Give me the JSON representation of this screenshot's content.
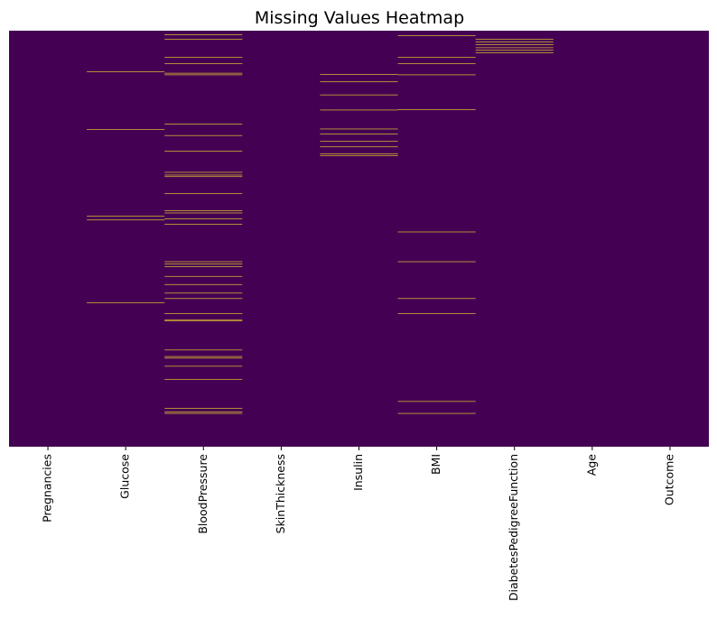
{
  "chart_data": {
    "type": "heatmap",
    "title": "Missing Values Heatmap",
    "xlabel": "",
    "ylabel": "",
    "columns": [
      "Pregnancies",
      "Glucose",
      "BloodPressure",
      "SkinThickness",
      "Insulin",
      "BMI",
      "DiabetesPedigreeFunction",
      "Age",
      "Outcome"
    ],
    "colors": {
      "present": "#440154",
      "missing": "#fde725"
    },
    "colorbar": false,
    "y_tick_labels": false,
    "row_count": 768,
    "missing_rows": {
      "Pregnancies": [],
      "Glucose": [
        75,
        182,
        342,
        349,
        502
      ],
      "BloodPressure": [
        7,
        15,
        49,
        60,
        78,
        81,
        172,
        193,
        222,
        261,
        266,
        269,
        300,
        332,
        336,
        347,
        357,
        426,
        430,
        435,
        453,
        468,
        484,
        494,
        522,
        533,
        535,
        589,
        601,
        604,
        619,
        643,
        697,
        703,
        706
      ],
      "SkinThickness": [],
      "Insulin": [
        80,
        94,
        118,
        146,
        181,
        190,
        204,
        214,
        227,
        230
      ],
      "BMI": [
        9,
        49,
        60,
        81,
        145,
        371,
        426,
        494,
        522,
        684,
        706
      ],
      "DiabetesPedigreeFunction": [
        15,
        20,
        25,
        31,
        35,
        40
      ],
      "Age": [],
      "Outcome": []
    }
  }
}
